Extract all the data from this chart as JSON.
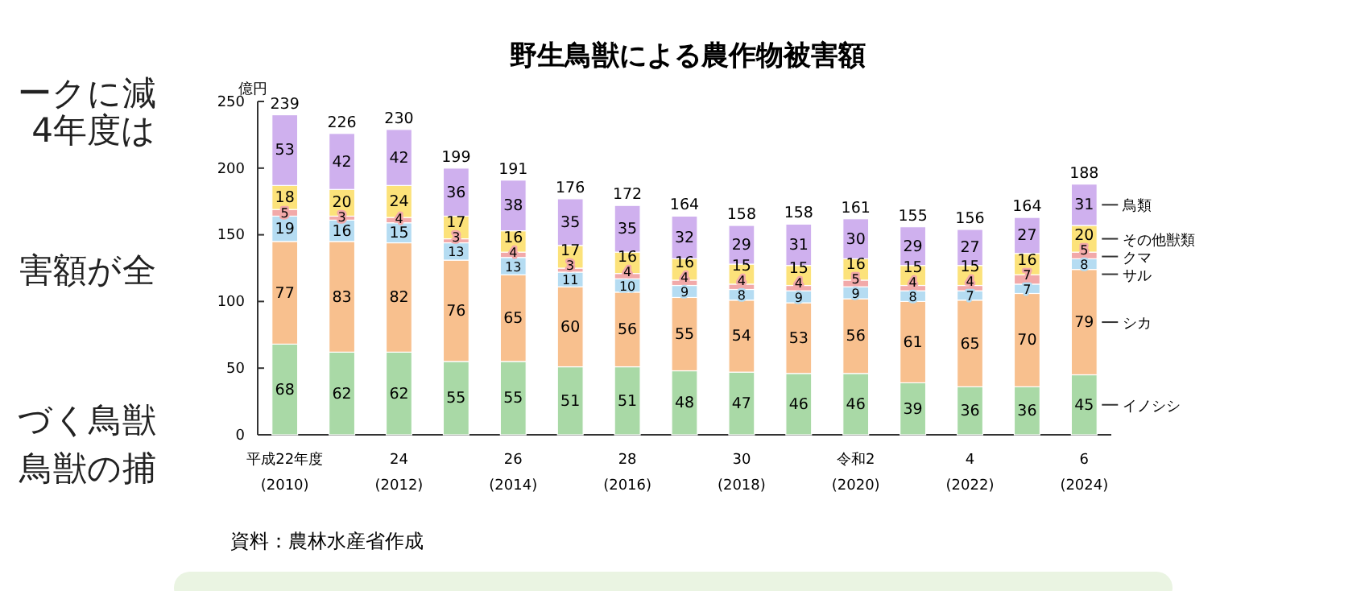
{
  "chart_data": {
    "type": "bar",
    "stacked": true,
    "title": "野生鳥獣による農作物被害額",
    "ylabel": "億円",
    "categories": [
      "平成22年度\n(2010)",
      null,
      "24\n(2012)",
      null,
      "26\n(2014)",
      null,
      "28\n(2016)",
      null,
      "30\n(2018)",
      null,
      "令和2\n(2020)",
      null,
      "4\n(2022)",
      null,
      "6\n(2024)"
    ],
    "series": [
      {
        "name": "イノシシ",
        "color": "#a9d9a6",
        "values": [
          68,
          62,
          62,
          55,
          55,
          51,
          51,
          48,
          47,
          46,
          46,
          39,
          36,
          36,
          45
        ]
      },
      {
        "name": "シカ",
        "color": "#f8c08e",
        "values": [
          77,
          83,
          82,
          76,
          65,
          60,
          56,
          55,
          54,
          53,
          56,
          61,
          65,
          70,
          79
        ]
      },
      {
        "name": "サル",
        "color": "#b5dcf2",
        "values": [
          19,
          16,
          15,
          13,
          13,
          11,
          10,
          9,
          8,
          9,
          9,
          8,
          7,
          7,
          8
        ]
      },
      {
        "name": "クマ",
        "color": "#f2a9a9",
        "values": [
          5,
          3,
          4,
          3,
          4,
          3,
          4,
          4,
          4,
          4,
          5,
          4,
          4,
          7,
          5
        ]
      },
      {
        "name": "その他獣類",
        "color": "#fce27a",
        "values": [
          18,
          20,
          24,
          17,
          16,
          17,
          16,
          16,
          15,
          15,
          16,
          15,
          15,
          16,
          20
        ]
      },
      {
        "name": "鳥類",
        "color": "#cfb0ee",
        "values": [
          53,
          42,
          42,
          36,
          38,
          35,
          35,
          32,
          29,
          31,
          30,
          29,
          27,
          27,
          31
        ]
      }
    ],
    "totals": [
      "239",
      "226",
      "230",
      "199",
      "191",
      "176",
      "172",
      "164",
      "158",
      "158",
      "161",
      "155",
      "156",
      "164",
      "188"
    ],
    "ylim": [
      0,
      250
    ],
    "yticks": [
      0,
      50,
      100,
      150,
      200,
      250
    ],
    "grid": false,
    "legend": "right",
    "data_labels": true,
    "annotations": [
      "資料：農林水産省作成",
      "ークに減",
      "4年度は",
      "害額が全",
      "づく鳥獣",
      "鳥獣の捕"
    ]
  }
}
